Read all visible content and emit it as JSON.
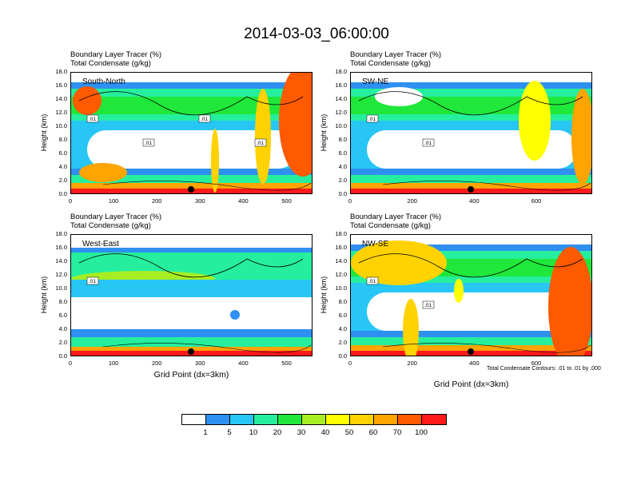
{
  "title": "2014-03-03_06:00:00",
  "colors": {
    "levels": [
      "#ffffff",
      "#2e90f0",
      "#27c6f5",
      "#25ef9e",
      "#1fe83a",
      "#a6ee23",
      "#ffff00",
      "#ffd200",
      "#ffa400",
      "#ff5a00",
      "#ff1a1a"
    ],
    "land": "#b00000"
  },
  "chart_data": [
    {
      "type": "heatmap",
      "name": "South-North",
      "label": "South-North",
      "header_line1": "Boundary Layer Tracer   (%)",
      "header_line2": "Total Condensate   (g/kg)",
      "xlabel": "",
      "ylabel": "Height (km)",
      "xticks": [
        "0",
        "100",
        "200",
        "300",
        "400",
        "500"
      ],
      "xlim": [
        0,
        560
      ],
      "yticks": [
        "0.0",
        "2.0",
        "4.0",
        "6.0",
        "8.0",
        "10.0",
        "12.0",
        "14.0",
        "16.0",
        "18.0"
      ],
      "ylim": [
        0,
        18
      ],
      "contour_labels": [
        ".01",
        ".01",
        ".01",
        ".01"
      ],
      "footnote": ""
    },
    {
      "type": "heatmap",
      "name": "SW-NE",
      "label": "SW-NE",
      "header_line1": "Boundary Layer Tracer   (%)",
      "header_line2": "Total Condensate   (g/kg)",
      "xlabel": "",
      "ylabel": "Height (km)",
      "xticks": [
        "0",
        "200",
        "400",
        "600"
      ],
      "xlim": [
        0,
        780
      ],
      "yticks": [
        "0.0",
        "2.0",
        "4.0",
        "6.0",
        "8.0",
        "10.0",
        "12.0",
        "14.0",
        "16.0",
        "18.0"
      ],
      "ylim": [
        0,
        18
      ],
      "contour_labels": [
        ".01",
        ".01"
      ],
      "footnote": ""
    },
    {
      "type": "heatmap",
      "name": "West-East",
      "label": "West-East",
      "header_line1": "Boundary Layer Tracer   (%)",
      "header_line2": "Total Condensate   (g/kg)",
      "xlabel": "Grid Point (dx=3km)",
      "ylabel": "Height (km)",
      "xticks": [
        "0",
        "100",
        "200",
        "300",
        "400",
        "500"
      ],
      "xlim": [
        0,
        560
      ],
      "yticks": [
        "0.0",
        "2.0",
        "4.0",
        "6.0",
        "8.0",
        "10.0",
        "12.0",
        "14.0",
        "16.0",
        "18.0"
      ],
      "ylim": [
        0,
        18
      ],
      "contour_labels": [
        ".01"
      ],
      "footnote": ""
    },
    {
      "type": "heatmap",
      "name": "NW-SE",
      "label": "NW-SE",
      "header_line1": "Boundary Layer Tracer   (%)",
      "header_line2": "Total Condensate   (g/kg)",
      "xlabel": "Grid Point (dx=3km)",
      "ylabel": "Height (km)",
      "xticks": [
        "0",
        "200",
        "400",
        "600"
      ],
      "xlim": [
        0,
        780
      ],
      "yticks": [
        "0.0",
        "2.0",
        "4.0",
        "6.0",
        "8.0",
        "10.0",
        "12.0",
        "14.0",
        "16.0",
        "18.0"
      ],
      "ylim": [
        0,
        18
      ],
      "contour_labels": [
        ".01",
        ".01"
      ],
      "footnote": "Total Condensate Contours: .01 to .01 by .000"
    }
  ],
  "colorbar": {
    "labels": [
      "1",
      "5",
      "10",
      "20",
      "30",
      "40",
      "50",
      "60",
      "70",
      "100"
    ]
  }
}
